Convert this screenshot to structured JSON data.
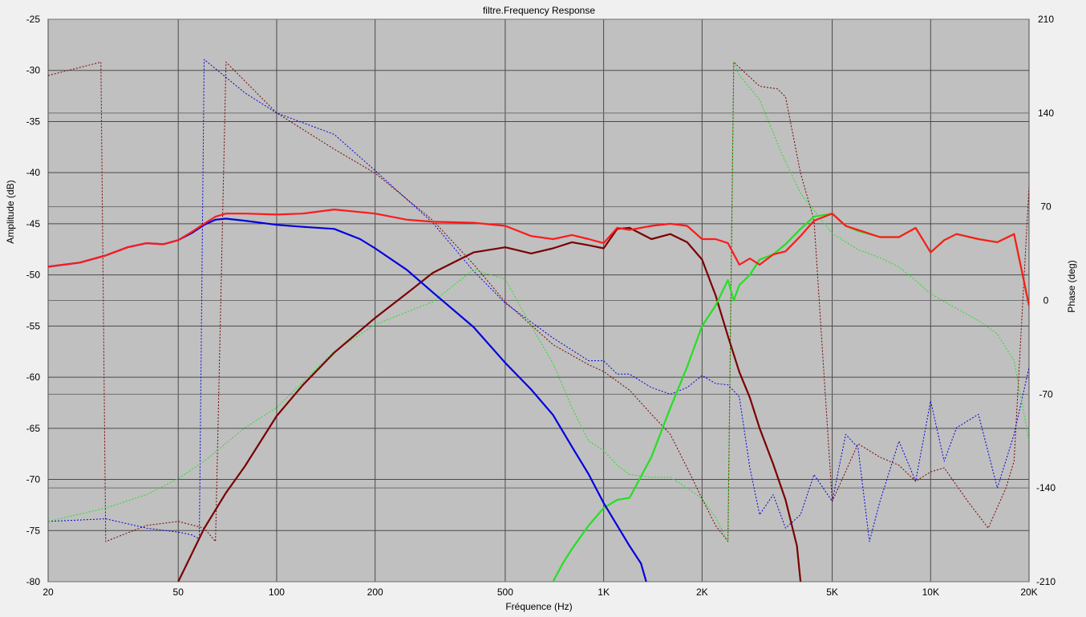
{
  "chart_data": {
    "type": "line",
    "title": "filtre.Frequency Response",
    "xlabel": "Fréquence (Hz)",
    "ylabel": "Amplitude (dB)",
    "y2label": "Phase (deg)",
    "xscale": "log",
    "xlim": [
      20,
      20000
    ],
    "ylim": [
      -80,
      -25
    ],
    "y2lim": [
      -210,
      210
    ],
    "grid": true,
    "legend": "none",
    "x_ticks": [
      {
        "v": 20,
        "label": "20"
      },
      {
        "v": 50,
        "label": "50"
      },
      {
        "v": 100,
        "label": "100"
      },
      {
        "v": 200,
        "label": "200"
      },
      {
        "v": 500,
        "label": "500"
      },
      {
        "v": 1000,
        "label": "1K"
      },
      {
        "v": 2000,
        "label": "2K"
      },
      {
        "v": 5000,
        "label": "5K"
      },
      {
        "v": 10000,
        "label": "10K"
      },
      {
        "v": 20000,
        "label": "20K"
      }
    ],
    "y_ticks": [
      -25,
      -30,
      -35,
      -40,
      -45,
      -50,
      -55,
      -60,
      -65,
      -70,
      -75,
      -80
    ],
    "y2_ticks": [
      210,
      140,
      70,
      0,
      -70,
      -140,
      -210
    ],
    "colors": {
      "plot_bg": "#c0c0c0",
      "grid": "#4a4a4a",
      "sum": "#ff1a1a",
      "woofer": "#0000e0",
      "mid": "#7a0000",
      "tweeter": "#22e022"
    },
    "series": [
      {
        "key": "sum",
        "color": "#ff1a1a",
        "style": "solid",
        "axis": "left",
        "x": [
          20,
          25,
          30,
          35,
          40,
          45,
          50,
          55,
          60,
          65,
          70,
          80,
          100,
          120,
          150,
          200,
          250,
          300,
          400,
          500,
          600,
          700,
          800,
          900,
          1000,
          1100,
          1200,
          1400,
          1600,
          1800,
          2000,
          2200,
          2400,
          2600,
          2800,
          3000,
          3300,
          3600,
          4000,
          4400,
          5000,
          5500,
          6000,
          7000,
          8000,
          9000,
          10000,
          11000,
          12000,
          14000,
          16000,
          18000,
          20000
        ],
        "y": [
          -49.2,
          -48.8,
          -48.1,
          -47.3,
          -46.9,
          -47.0,
          -46.6,
          -45.8,
          -45.0,
          -44.3,
          -44.0,
          -44.0,
          -44.1,
          -44.0,
          -43.6,
          -44.0,
          -44.6,
          -44.8,
          -44.9,
          -45.2,
          -46.2,
          -46.5,
          -46.1,
          -46.5,
          -46.9,
          -45.4,
          -45.6,
          -45.2,
          -45.0,
          -45.2,
          -46.5,
          -46.5,
          -46.9,
          -49.0,
          -48.4,
          -49.0,
          -48.0,
          -47.7,
          -46.2,
          -44.7,
          -44.0,
          -45.2,
          -45.6,
          -46.3,
          -46.3,
          -45.4,
          -47.8,
          -46.6,
          -46.0,
          -46.5,
          -46.8,
          -46.0,
          -53.0
        ]
      },
      {
        "key": "woofer",
        "color": "#0000e0",
        "style": "solid",
        "axis": "left",
        "x": [
          20,
          25,
          30,
          35,
          40,
          45,
          50,
          55,
          60,
          65,
          70,
          80,
          100,
          120,
          150,
          180,
          200,
          250,
          300,
          400,
          500,
          600,
          700,
          800,
          900,
          1000,
          1200,
          1300,
          1350
        ],
        "y": [
          -49.2,
          -48.8,
          -48.1,
          -47.3,
          -46.9,
          -47.0,
          -46.6,
          -45.9,
          -45.1,
          -44.6,
          -44.5,
          -44.7,
          -45.1,
          -45.3,
          -45.5,
          -46.5,
          -47.4,
          -49.5,
          -51.7,
          -55.1,
          -58.6,
          -61.2,
          -63.7,
          -66.8,
          -69.5,
          -72.3,
          -76.5,
          -78.2,
          -80
        ]
      },
      {
        "key": "mid",
        "color": "#7a0000",
        "style": "solid",
        "axis": "left",
        "x": [
          50,
          60,
          70,
          80,
          100,
          120,
          150,
          200,
          250,
          300,
          400,
          500,
          600,
          700,
          800,
          900,
          1000,
          1100,
          1200,
          1400,
          1600,
          1800,
          2000,
          2200,
          2400,
          2600,
          2800,
          3000,
          3300,
          3600,
          3900,
          4000
        ],
        "y": [
          -80,
          -74.8,
          -71.3,
          -68.7,
          -63.8,
          -60.8,
          -57.6,
          -54.2,
          -51.8,
          -49.8,
          -47.8,
          -47.3,
          -47.9,
          -47.4,
          -46.8,
          -47.1,
          -47.4,
          -45.5,
          -45.4,
          -46.5,
          -46.0,
          -46.8,
          -48.5,
          -52.0,
          -56.0,
          -59.5,
          -62.0,
          -65.0,
          -68.5,
          -72.0,
          -76.5,
          -80
        ]
      },
      {
        "key": "tweeter",
        "color": "#22e022",
        "style": "solid",
        "axis": "left",
        "x": [
          700,
          750,
          800,
          900,
          1000,
          1100,
          1200,
          1400,
          1600,
          1800,
          2000,
          2200,
          2400,
          2500,
          2600,
          2800,
          3000,
          3300,
          3600,
          4000,
          4400,
          5000,
          5500,
          6000,
          7000,
          8000,
          9000,
          10000,
          11000,
          12000,
          14000,
          16000,
          18000,
          20000
        ],
        "y": [
          -80,
          -78.2,
          -76.8,
          -74.5,
          -72.8,
          -72.0,
          -71.8,
          -67.8,
          -63.0,
          -59.0,
          -55.0,
          -53.0,
          -50.5,
          -52.5,
          -51.0,
          -50.0,
          -48.5,
          -48.0,
          -47.0,
          -45.5,
          -44.3,
          -44.0,
          -45.2,
          -45.7,
          -46.3,
          -46.3,
          -45.4,
          -47.8,
          -46.6,
          -46.0,
          -46.5,
          -46.8,
          -46.0,
          -53.0
        ]
      },
      {
        "key": "mid-phase",
        "color": "#7a0000",
        "style": "dotted",
        "axis": "right",
        "x": [
          20,
          29,
          30,
          40,
          50,
          60,
          65,
          70,
          100,
          150,
          200,
          300,
          400,
          500,
          700,
          900,
          1000,
          1200,
          1400,
          1600,
          1800,
          2000,
          2200,
          2400,
          2500,
          2600,
          3000,
          3400,
          3600,
          4000,
          4400,
          5000,
          6000,
          7000,
          8000,
          9000,
          10000,
          11000,
          13000,
          15000,
          17000,
          18000,
          20000
        ],
        "y": [
          168,
          178,
          -180,
          -168,
          -165,
          -170,
          -180,
          178,
          140,
          113,
          95,
          60,
          27,
          -1,
          -33,
          -48,
          -53,
          -67,
          -85,
          -100,
          -125,
          -148,
          -168,
          -180,
          178,
          174,
          160,
          158,
          152,
          95,
          60,
          -150,
          -107,
          -117,
          -123,
          -135,
          -128,
          -125,
          -150,
          -170,
          -140,
          -120,
          85
        ]
      },
      {
        "key": "woofer-phase",
        "color": "#0000e0",
        "style": "dotted",
        "axis": "right",
        "x": [
          20,
          30,
          40,
          50,
          55,
          58,
          60,
          80,
          100,
          150,
          200,
          300,
          400,
          500,
          700,
          900,
          1000,
          1100,
          1200,
          1400,
          1600,
          1800,
          2000,
          2200,
          2400,
          2600,
          2800,
          3000,
          3300,
          3600,
          4000,
          4400,
          5000,
          5500,
          6000,
          6500,
          7000,
          8000,
          9000,
          10000,
          11000,
          12000,
          14000,
          16000,
          18000,
          20000
        ],
        "y": [
          -165,
          -163,
          -170,
          -173,
          -175,
          -178,
          180,
          155,
          140,
          124,
          97,
          58,
          22,
          -2,
          -28,
          -45,
          -45,
          -55,
          -55,
          -65,
          -70,
          -65,
          -56,
          -62,
          -63,
          -72,
          -125,
          -160,
          -145,
          -170,
          -160,
          -130,
          -150,
          -100,
          -110,
          -180,
          -150,
          -105,
          -135,
          -75,
          -120,
          -95,
          -85,
          -140,
          -100,
          -50
        ]
      },
      {
        "key": "tweeter-phase",
        "color": "#22e022",
        "style": "dotted",
        "axis": "right",
        "x": [
          20,
          30,
          40,
          50,
          60,
          80,
          100,
          150,
          200,
          300,
          400,
          500,
          600,
          700,
          800,
          900,
          1000,
          1100,
          1200,
          1400,
          1600,
          1800,
          2000,
          2200,
          2400,
          2500,
          2600,
          3000,
          3500,
          4000,
          5000,
          6000,
          7000,
          8000,
          9000,
          10000,
          12000,
          14000,
          16000,
          18000,
          20000
        ],
        "y": [
          -165,
          -155,
          -145,
          -133,
          -120,
          -95,
          -80,
          -38,
          -18,
          -1,
          23,
          16,
          -19,
          -47,
          -80,
          -105,
          -112,
          -123,
          -130,
          -132,
          -132,
          -140,
          -148,
          -162,
          -180,
          178,
          168,
          150,
          110,
          80,
          50,
          38,
          32,
          25,
          15,
          5,
          -6,
          -15,
          -25,
          -45,
          -105
        ]
      }
    ]
  }
}
